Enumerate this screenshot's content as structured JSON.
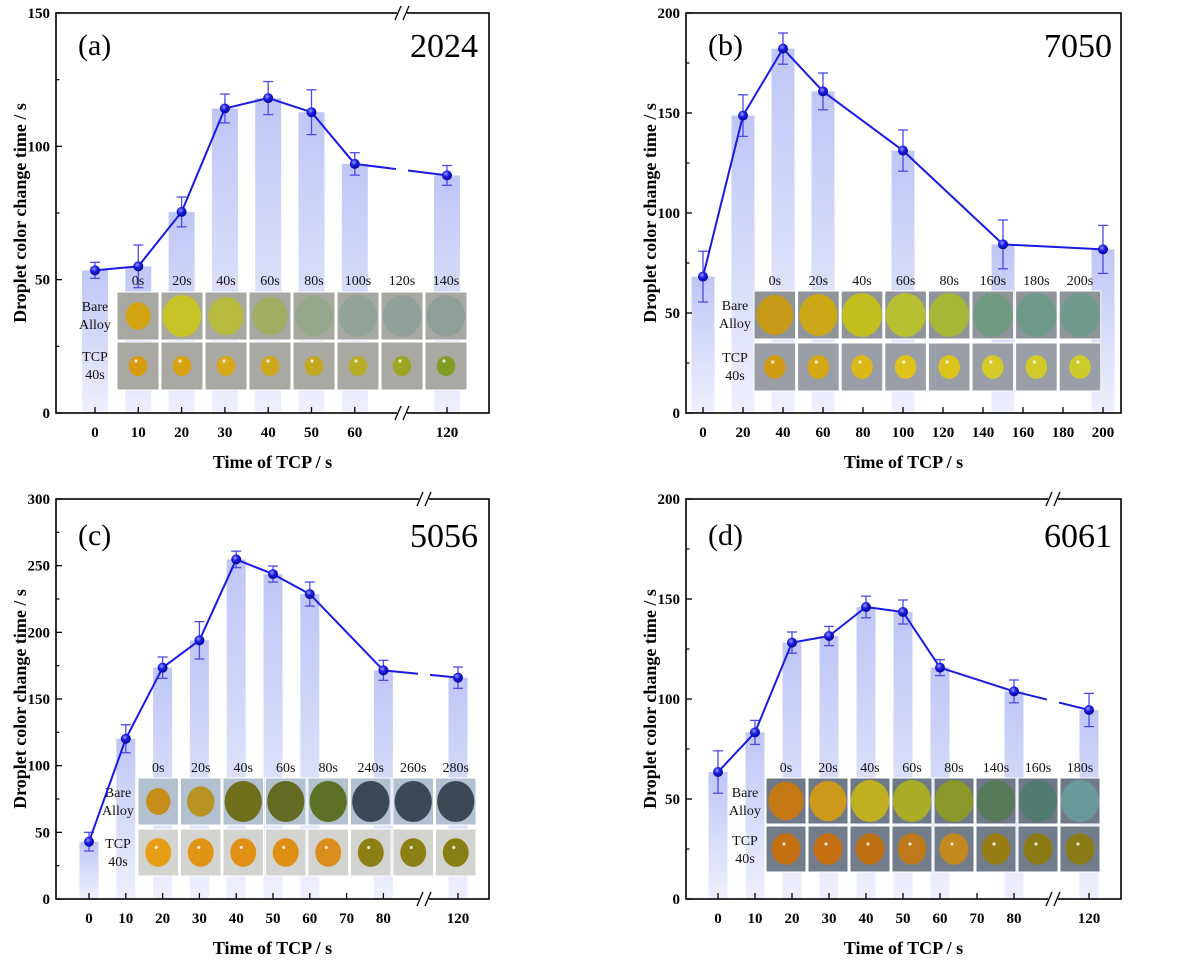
{
  "chart_data": [
    {
      "type": "bar+line",
      "panel_label": "(a)",
      "alloy": "2024",
      "xlabel": "Time of TCP / s",
      "ylabel": "Droplet color change time / s",
      "ylim": [
        0,
        150
      ],
      "yticks": [
        "0",
        "50",
        "100",
        "150"
      ],
      "xticks": [
        "0",
        "10",
        "20",
        "30",
        "40",
        "50",
        "60",
        "120"
      ],
      "axis_break": true,
      "x": [
        0,
        10,
        20,
        30,
        40,
        50,
        60,
        120
      ],
      "values": [
        53.5,
        55,
        75.4,
        114.2,
        118.1,
        112.8,
        93.4,
        89.1
      ],
      "errors": [
        3,
        8,
        5.6,
        5.4,
        6.2,
        8.4,
        4.2,
        3.7
      ],
      "inset": {
        "times": [
          "0s",
          "20s",
          "40s",
          "60s",
          "80s",
          "100s",
          "120s",
          "140s"
        ],
        "rows": [
          [
            "Bare",
            "Alloy"
          ],
          [
            "TCP",
            "40s"
          ]
        ]
      }
    },
    {
      "type": "bar+line",
      "panel_label": "(b)",
      "alloy": "7050",
      "xlabel": "Time of TCP / s",
      "ylabel": "Droplet color change time / s",
      "ylim": [
        0,
        200
      ],
      "yticks": [
        "0",
        "50",
        "100",
        "150",
        "200"
      ],
      "xticks": [
        "0",
        "20",
        "40",
        "60",
        "80",
        "100",
        "120",
        "140",
        "160",
        "180",
        "200"
      ],
      "axis_break": false,
      "x": [
        0,
        20,
        40,
        60,
        100,
        150,
        200
      ],
      "values": [
        68.2,
        148.7,
        182.2,
        160.8,
        131.2,
        84.3,
        81.8
      ],
      "errors": [
        12.7,
        10.4,
        7.8,
        9.2,
        10.3,
        12.2,
        12
      ],
      "inset": {
        "times": [
          "0s",
          "20s",
          "40s",
          "60s",
          "80s",
          "160s",
          "180s",
          "200s"
        ],
        "rows": [
          [
            "Bare",
            "Alloy"
          ],
          [
            "TCP",
            "40s"
          ]
        ]
      }
    },
    {
      "type": "bar+line",
      "panel_label": "(c)",
      "alloy": "5056",
      "xlabel": "Time of TCP / s",
      "ylabel": "Droplet color change time / s",
      "ylim": [
        0,
        300
      ],
      "yticks": [
        "0",
        "50",
        "100",
        "150",
        "200",
        "250",
        "300"
      ],
      "xticks": [
        "0",
        "10",
        "20",
        "30",
        "40",
        "50",
        "60",
        "70",
        "80",
        "120"
      ],
      "axis_break": true,
      "x": [
        0,
        10,
        20,
        30,
        40,
        50,
        60,
        80,
        120
      ],
      "values": [
        43,
        120.2,
        173.5,
        194,
        254.7,
        243.7,
        228.7,
        171.5,
        166
      ],
      "errors": [
        7,
        10.5,
        8,
        14,
        6.2,
        6,
        9,
        7.5,
        8
      ],
      "inset": {
        "times": [
          "0s",
          "20s",
          "40s",
          "60s",
          "80s",
          "240s",
          "260s",
          "280s"
        ],
        "rows": [
          [
            "Bare",
            "Alloy"
          ],
          [
            "TCP",
            "40s"
          ]
        ]
      }
    },
    {
      "type": "bar+line",
      "panel_label": "(d)",
      "alloy": "6061",
      "xlabel": "Time of TCP / s",
      "ylabel": "Droplet color change time / s",
      "ylim": [
        0,
        200
      ],
      "yticks": [
        "0",
        "50",
        "100",
        "150",
        "200"
      ],
      "xticks": [
        "0",
        "10",
        "20",
        "30",
        "40",
        "50",
        "60",
        "70",
        "80",
        "120"
      ],
      "axis_break": true,
      "x": [
        0,
        10,
        20,
        30,
        40,
        50,
        60,
        80,
        120
      ],
      "values": [
        63.5,
        83.3,
        128.2,
        131.5,
        146,
        143.5,
        115.7,
        103.8,
        94.5
      ],
      "errors": [
        10.6,
        6,
        5.3,
        4.8,
        5.4,
        6,
        4,
        5.7,
        8.3
      ],
      "inset": {
        "times": [
          "0s",
          "20s",
          "40s",
          "60s",
          "80s",
          "140s",
          "160s",
          "180s"
        ],
        "rows": [
          [
            "Bare",
            "Alloy"
          ],
          [
            "TCP",
            "40s"
          ]
        ]
      }
    }
  ],
  "colors": {
    "line": "#1a1ae6",
    "bar_top": "#bfc6f6",
    "bar_bottom": "#eef0fd",
    "axis": "#000000"
  }
}
